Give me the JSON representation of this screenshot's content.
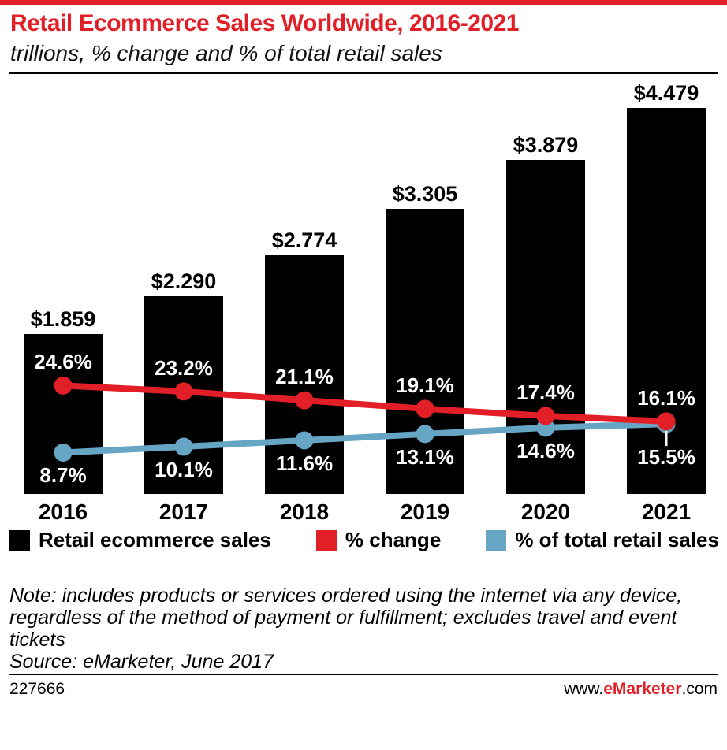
{
  "header": {
    "title": "Retail Ecommerce Sales Worldwide, 2016-2021",
    "subtitle": "trillions, % change and % of total retail sales"
  },
  "chart_data": {
    "type": "bar",
    "categories": [
      "2016",
      "2017",
      "2018",
      "2019",
      "2020",
      "2021"
    ],
    "series": [
      {
        "name": "Retail ecommerce sales",
        "render": "bar",
        "color": "#000000",
        "unit": "$ trillions",
        "values": [
          1.859,
          2.29,
          2.774,
          3.305,
          3.879,
          4.479
        ],
        "labels": [
          "$1.859",
          "$2.290",
          "$2.774",
          "$3.305",
          "$3.879",
          "$4.479"
        ]
      },
      {
        "name": "% change",
        "render": "line",
        "color": "#e21f26",
        "values": [
          24.6,
          23.2,
          21.1,
          19.1,
          17.4,
          16.1
        ],
        "labels": [
          "24.6%",
          "23.2%",
          "21.1%",
          "19.1%",
          "17.4%",
          "16.1%"
        ]
      },
      {
        "name": "% of total retail sales",
        "render": "line",
        "color": "#66a5c4",
        "values": [
          8.7,
          10.1,
          11.6,
          13.1,
          14.6,
          15.5
        ],
        "labels": [
          "8.7%",
          "10.1%",
          "11.6%",
          "13.1%",
          "14.6%",
          "15.5%"
        ]
      }
    ],
    "title": "Retail Ecommerce Sales Worldwide, 2016-2021",
    "subtitle": "trillions, % change and % of total retail sales",
    "xlabel": "",
    "ylabel": "",
    "legend_position": "bottom",
    "grid": false
  },
  "note": {
    "note_text": "Note: includes products or services ordered using the internet via any device, regardless of the method of payment or fulfillment; excludes travel and event tickets",
    "source_text": "Source: eMarketer, June 2017"
  },
  "footer": {
    "chart_id": "227666",
    "site_prefix": "www.",
    "site_brand": "eMarketer",
    "site_suffix": ".com"
  },
  "colors": {
    "accent_red": "#e21f26",
    "bar_black": "#000000",
    "line_blue": "#66a5c4",
    "background": "#ffffff"
  }
}
